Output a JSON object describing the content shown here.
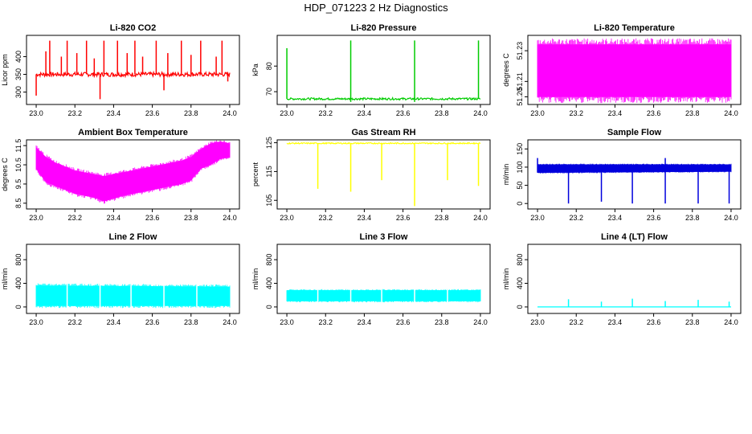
{
  "figure": {
    "title": "HDP_071223 2 Hz Diagnostics"
  },
  "chart_data": [
    {
      "type": "line",
      "title": "Li-820 CO2",
      "ylabel": "Licor ppm",
      "xlabel": "",
      "xlim": [
        22.95,
        24.05
      ],
      "ylim": [
        265,
        460
      ],
      "xticks": [
        "23.0",
        "23.2",
        "23.4",
        "23.6",
        "23.8",
        "24.0"
      ],
      "yticks": [
        "300",
        "350",
        "400"
      ],
      "color": "#ff0000",
      "series": [
        {
          "kind": "signal",
          "baseline": 350,
          "noise": 6,
          "spikes": [
            {
              "x": 23.0,
              "y": 290
            },
            {
              "x": 23.05,
              "y": 415
            },
            {
              "x": 23.07,
              "y": 445
            },
            {
              "x": 23.13,
              "y": 400
            },
            {
              "x": 23.16,
              "y": 445
            },
            {
              "x": 23.21,
              "y": 410
            },
            {
              "x": 23.26,
              "y": 445
            },
            {
              "x": 23.3,
              "y": 395
            },
            {
              "x": 23.33,
              "y": 280
            },
            {
              "x": 23.35,
              "y": 445
            },
            {
              "x": 23.42,
              "y": 445
            },
            {
              "x": 23.47,
              "y": 410
            },
            {
              "x": 23.51,
              "y": 445
            },
            {
              "x": 23.55,
              "y": 400
            },
            {
              "x": 23.62,
              "y": 445
            },
            {
              "x": 23.66,
              "y": 305
            },
            {
              "x": 23.68,
              "y": 410
            },
            {
              "x": 23.75,
              "y": 445
            },
            {
              "x": 23.8,
              "y": 405
            },
            {
              "x": 23.85,
              "y": 445
            },
            {
              "x": 23.93,
              "y": 400
            },
            {
              "x": 23.96,
              "y": 445
            },
            {
              "x": 23.99,
              "y": 330
            }
          ]
        }
      ]
    },
    {
      "type": "line",
      "title": "Li-820 Pressure",
      "ylabel": "kPa",
      "xlabel": "",
      "xlim": [
        22.95,
        24.05
      ],
      "ylim": [
        65,
        92
      ],
      "xticks": [
        "23.0",
        "23.2",
        "23.4",
        "23.6",
        "23.8",
        "24.0"
      ],
      "yticks": [
        "70",
        "80"
      ],
      "color": "#00cc00",
      "series": [
        {
          "kind": "signal",
          "baseline": 67.2,
          "noise": 0.4,
          "spikes": [
            {
              "x": 23.0,
              "y": 87
            },
            {
              "x": 23.33,
              "y": 90
            },
            {
              "x": 23.33,
              "y": 66
            },
            {
              "x": 23.66,
              "y": 90
            },
            {
              "x": 23.66,
              "y": 66
            },
            {
              "x": 23.99,
              "y": 90
            }
          ]
        }
      ]
    },
    {
      "type": "area",
      "title": "Li-820 Temperature",
      "ylabel": "degrees C",
      "xlabel": "",
      "xlim": [
        22.95,
        24.05
      ],
      "ylim": [
        51.195,
        51.24
      ],
      "xticks": [
        "23.0",
        "23.2",
        "23.4",
        "23.6",
        "23.8",
        "24.0"
      ],
      "yticks": [
        "51.20",
        "51.21",
        "51.23"
      ],
      "color": "#ff00ff",
      "series": [
        {
          "kind": "band",
          "x": [
            23.0,
            24.0
          ],
          "low": [
            51.2,
            51.2
          ],
          "high": [
            51.234,
            51.234
          ]
        }
      ]
    },
    {
      "type": "area",
      "title": "Ambient Box Temperature",
      "ylabel": "degrees C",
      "xlabel": "",
      "xlim": [
        22.95,
        24.05
      ],
      "ylim": [
        8.2,
        11.8
      ],
      "xticks": [
        "23.0",
        "23.2",
        "23.4",
        "23.6",
        "23.8",
        "24.0"
      ],
      "yticks": [
        "8.5",
        "9.5",
        "10.5",
        "11.5"
      ],
      "color": "#ff00ff",
      "series": [
        {
          "kind": "band",
          "x": [
            23.0,
            23.05,
            23.1,
            23.2,
            23.3,
            23.35,
            23.45,
            23.55,
            23.65,
            23.75,
            23.8,
            23.85,
            23.9,
            23.95,
            24.0
          ],
          "low": [
            10.3,
            9.6,
            9.4,
            9.0,
            8.8,
            8.6,
            8.9,
            9.1,
            9.3,
            9.5,
            9.7,
            10.3,
            10.5,
            10.8,
            10.9
          ],
          "high": [
            11.4,
            10.9,
            10.6,
            10.2,
            10.0,
            9.9,
            10.1,
            10.3,
            10.5,
            10.7,
            10.9,
            11.3,
            11.6,
            11.7,
            11.6
          ]
        }
      ]
    },
    {
      "type": "line",
      "title": "Gas Stream RH",
      "ylabel": "percent",
      "xlabel": "",
      "xlim": [
        22.95,
        24.05
      ],
      "ylim": [
        102,
        126
      ],
      "xticks": [
        "23.0",
        "23.2",
        "23.4",
        "23.6",
        "23.8",
        "24.0"
      ],
      "yticks": [
        "105",
        "115",
        "125"
      ],
      "color": "#ffff00",
      "series": [
        {
          "kind": "signal",
          "baseline": 124.8,
          "noise": 0.2,
          "spikes": [
            {
              "x": 23.16,
              "y": 109
            },
            {
              "x": 23.33,
              "y": 108
            },
            {
              "x": 23.49,
              "y": 112
            },
            {
              "x": 23.66,
              "y": 103
            },
            {
              "x": 23.83,
              "y": 112
            },
            {
              "x": 23.99,
              "y": 110
            }
          ]
        }
      ]
    },
    {
      "type": "area",
      "title": "Sample Flow",
      "ylabel": "ml/min",
      "xlabel": "",
      "xlim": [
        22.95,
        24.05
      ],
      "ylim": [
        -15,
        175
      ],
      "xticks": [
        "23.0",
        "23.2",
        "23.4",
        "23.6",
        "23.8",
        "24.0"
      ],
      "yticks": [
        "0",
        "50",
        "100",
        "150"
      ],
      "color": "#0000dd",
      "series": [
        {
          "kind": "band",
          "x": [
            23.0,
            24.0
          ],
          "low": [
            85,
            88
          ],
          "high": [
            107,
            107
          ],
          "spikes": [
            {
              "x": 23.0,
              "y": 125
            },
            {
              "x": 23.16,
              "y": 0
            },
            {
              "x": 23.33,
              "y": 5
            },
            {
              "x": 23.49,
              "y": 0
            },
            {
              "x": 23.66,
              "y": 125
            },
            {
              "x": 23.66,
              "y": 0
            },
            {
              "x": 23.83,
              "y": 0
            },
            {
              "x": 23.99,
              "y": 0
            }
          ]
        }
      ]
    },
    {
      "type": "area",
      "title": "Line 2 Flow",
      "ylabel": "ml/min",
      "xlabel": "",
      "xlim": [
        22.95,
        24.05
      ],
      "ylim": [
        -110,
        1060
      ],
      "xticks": [
        "23.0",
        "23.2",
        "23.4",
        "23.6",
        "23.8",
        "24.0"
      ],
      "yticks": [
        "0",
        "400",
        "800"
      ],
      "color": "#00ffff",
      "series": [
        {
          "kind": "band",
          "x": [
            23.0,
            24.0
          ],
          "low": [
            20,
            20
          ],
          "high": [
            360,
            340
          ],
          "gaps": [
            23.16,
            23.33,
            23.49,
            23.66,
            23.83
          ]
        }
      ]
    },
    {
      "type": "area",
      "title": "Line 3 Flow",
      "ylabel": "ml/min",
      "xlabel": "",
      "xlim": [
        22.95,
        24.05
      ],
      "ylim": [
        -110,
        1060
      ],
      "xticks": [
        "23.0",
        "23.2",
        "23.4",
        "23.6",
        "23.8",
        "24.0"
      ],
      "yticks": [
        "0",
        "400",
        "800"
      ],
      "color": "#00ffff",
      "series": [
        {
          "kind": "band",
          "x": [
            23.0,
            24.0
          ],
          "low": [
            100,
            100
          ],
          "high": [
            280,
            280
          ],
          "gaps": [
            23.16,
            23.33,
            23.49,
            23.66,
            23.83
          ]
        }
      ]
    },
    {
      "type": "line",
      "title": "Line 4 (LT) Flow",
      "ylabel": "ml/min",
      "xlabel": "",
      "xlim": [
        22.95,
        24.05
      ],
      "ylim": [
        -110,
        1060
      ],
      "xticks": [
        "23.0",
        "23.2",
        "23.4",
        "23.6",
        "23.8",
        "24.0"
      ],
      "yticks": [
        "0",
        "400",
        "800"
      ],
      "color": "#00ffff",
      "series": [
        {
          "kind": "signal",
          "baseline": 0,
          "noise": 0,
          "spikes": [
            {
              "x": 23.16,
              "y": 130
            },
            {
              "x": 23.33,
              "y": 90
            },
            {
              "x": 23.49,
              "y": 140
            },
            {
              "x": 23.66,
              "y": 100
            },
            {
              "x": 23.83,
              "y": 120
            },
            {
              "x": 23.99,
              "y": 90
            }
          ]
        }
      ]
    }
  ]
}
